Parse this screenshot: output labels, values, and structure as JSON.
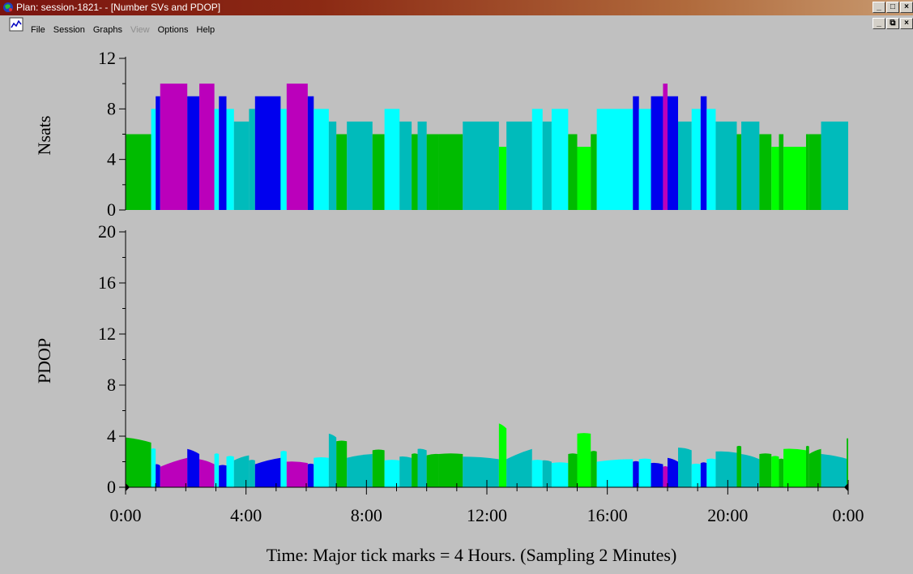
{
  "window": {
    "title": "Plan: session-1821- - [Number SVs and PDOP]",
    "app_icon": "globe-app-icon",
    "controls": [
      "_",
      "□",
      "×"
    ]
  },
  "mdi_controls": [
    "_",
    "⧉",
    "×"
  ],
  "menu": {
    "doc_icon": "chart-doc-icon",
    "items": [
      {
        "label": "File",
        "enabled": true
      },
      {
        "label": "Session",
        "enabled": true
      },
      {
        "label": "Graphs",
        "enabled": true
      },
      {
        "label": "View",
        "enabled": false
      },
      {
        "label": "Options",
        "enabled": true
      },
      {
        "label": "Help",
        "enabled": true
      }
    ]
  },
  "colors": {
    "green": "#00bb00",
    "magenta": "#bb00bb",
    "blue": "#0000ee",
    "cyan": "#00ffff",
    "teal": "#00bbbb",
    "lime": "#00ff00"
  },
  "chart_data": [
    {
      "type": "bar",
      "ylabel": "Nsats",
      "ylim": [
        0,
        12
      ],
      "yticks": [
        "0",
        "4",
        "8",
        "12"
      ],
      "xlim": [
        0,
        24
      ],
      "x_unit": "hours",
      "bars": [
        {
          "x0": 0.0,
          "x1": 0.85,
          "v": 6,
          "c": "green"
        },
        {
          "x0": 0.85,
          "x1": 1.0,
          "v": 8,
          "c": "cyan"
        },
        {
          "x0": 1.0,
          "x1": 1.15,
          "v": 9,
          "c": "blue"
        },
        {
          "x0": 1.15,
          "x1": 2.05,
          "v": 10,
          "c": "magenta"
        },
        {
          "x0": 2.05,
          "x1": 2.45,
          "v": 9,
          "c": "blue"
        },
        {
          "x0": 2.45,
          "x1": 2.95,
          "v": 10,
          "c": "magenta"
        },
        {
          "x0": 2.95,
          "x1": 3.1,
          "v": 8,
          "c": "cyan"
        },
        {
          "x0": 3.1,
          "x1": 3.35,
          "v": 9,
          "c": "blue"
        },
        {
          "x0": 3.35,
          "x1": 3.6,
          "v": 8,
          "c": "cyan"
        },
        {
          "x0": 3.6,
          "x1": 4.1,
          "v": 7,
          "c": "teal"
        },
        {
          "x0": 4.1,
          "x1": 4.3,
          "v": 8,
          "c": "teal"
        },
        {
          "x0": 4.3,
          "x1": 5.15,
          "v": 9,
          "c": "blue"
        },
        {
          "x0": 5.15,
          "x1": 5.35,
          "v": 8,
          "c": "cyan"
        },
        {
          "x0": 5.35,
          "x1": 6.05,
          "v": 10,
          "c": "magenta"
        },
        {
          "x0": 6.05,
          "x1": 6.25,
          "v": 9,
          "c": "blue"
        },
        {
          "x0": 6.25,
          "x1": 6.75,
          "v": 8,
          "c": "cyan"
        },
        {
          "x0": 6.75,
          "x1": 7.0,
          "v": 7,
          "c": "teal"
        },
        {
          "x0": 7.0,
          "x1": 7.35,
          "v": 6,
          "c": "green"
        },
        {
          "x0": 7.35,
          "x1": 8.2,
          "v": 7,
          "c": "teal"
        },
        {
          "x0": 8.2,
          "x1": 8.6,
          "v": 6,
          "c": "green"
        },
        {
          "x0": 8.6,
          "x1": 9.1,
          "v": 8,
          "c": "cyan"
        },
        {
          "x0": 9.1,
          "x1": 9.5,
          "v": 7,
          "c": "teal"
        },
        {
          "x0": 9.5,
          "x1": 9.7,
          "v": 6,
          "c": "green"
        },
        {
          "x0": 9.7,
          "x1": 10.0,
          "v": 7,
          "c": "teal"
        },
        {
          "x0": 10.0,
          "x1": 10.4,
          "v": 6,
          "c": "green"
        },
        {
          "x0": 10.4,
          "x1": 11.2,
          "v": 6,
          "c": "green"
        },
        {
          "x0": 11.2,
          "x1": 12.4,
          "v": 7,
          "c": "teal"
        },
        {
          "x0": 12.4,
          "x1": 12.65,
          "v": 5,
          "c": "lime"
        },
        {
          "x0": 12.65,
          "x1": 13.5,
          "v": 7,
          "c": "teal"
        },
        {
          "x0": 13.5,
          "x1": 13.85,
          "v": 8,
          "c": "cyan"
        },
        {
          "x0": 13.85,
          "x1": 14.15,
          "v": 7,
          "c": "teal"
        },
        {
          "x0": 14.15,
          "x1": 14.7,
          "v": 8,
          "c": "cyan"
        },
        {
          "x0": 14.7,
          "x1": 15.0,
          "v": 6,
          "c": "green"
        },
        {
          "x0": 15.0,
          "x1": 15.45,
          "v": 5,
          "c": "lime"
        },
        {
          "x0": 15.45,
          "x1": 15.65,
          "v": 6,
          "c": "green"
        },
        {
          "x0": 15.65,
          "x1": 16.85,
          "v": 8,
          "c": "cyan"
        },
        {
          "x0": 16.85,
          "x1": 17.05,
          "v": 9,
          "c": "blue"
        },
        {
          "x0": 17.05,
          "x1": 17.45,
          "v": 8,
          "c": "cyan"
        },
        {
          "x0": 17.45,
          "x1": 17.85,
          "v": 9,
          "c": "blue"
        },
        {
          "x0": 17.85,
          "x1": 18.0,
          "v": 10,
          "c": "magenta"
        },
        {
          "x0": 18.0,
          "x1": 18.35,
          "v": 9,
          "c": "blue"
        },
        {
          "x0": 18.35,
          "x1": 18.8,
          "v": 7,
          "c": "teal"
        },
        {
          "x0": 18.8,
          "x1": 19.1,
          "v": 8,
          "c": "cyan"
        },
        {
          "x0": 19.1,
          "x1": 19.3,
          "v": 9,
          "c": "blue"
        },
        {
          "x0": 19.3,
          "x1": 19.6,
          "v": 8,
          "c": "cyan"
        },
        {
          "x0": 19.6,
          "x1": 20.3,
          "v": 7,
          "c": "teal"
        },
        {
          "x0": 20.3,
          "x1": 20.45,
          "v": 6,
          "c": "green"
        },
        {
          "x0": 20.45,
          "x1": 21.05,
          "v": 7,
          "c": "teal"
        },
        {
          "x0": 21.05,
          "x1": 21.45,
          "v": 6,
          "c": "green"
        },
        {
          "x0": 21.45,
          "x1": 21.7,
          "v": 5,
          "c": "lime"
        },
        {
          "x0": 21.7,
          "x1": 21.85,
          "v": 6,
          "c": "green"
        },
        {
          "x0": 21.85,
          "x1": 22.6,
          "v": 5,
          "c": "lime"
        },
        {
          "x0": 22.6,
          "x1": 22.7,
          "v": 6,
          "c": "green"
        },
        {
          "x0": 22.7,
          "x1": 23.1,
          "v": 6,
          "c": "green"
        },
        {
          "x0": 23.1,
          "x1": 24.0,
          "v": 7,
          "c": "teal"
        }
      ]
    },
    {
      "type": "area",
      "ylabel": "PDOP",
      "ylim": [
        0,
        20
      ],
      "yticks": [
        "0",
        "4",
        "8",
        "12",
        "16",
        "20"
      ],
      "xlim": [
        0,
        24
      ],
      "x_unit": "hours",
      "xticks": [
        "0:00",
        "4:00",
        "8:00",
        "12:00",
        "16:00",
        "20:00",
        "0:00"
      ],
      "xlabel": "Time: Major tick marks = 4 Hours. (Sampling 2 Minutes)",
      "segments": [
        {
          "x0": 0.0,
          "x1": 0.85,
          "y0": 3.9,
          "y1": 3.5,
          "c": "green"
        },
        {
          "x0": 0.85,
          "x1": 1.0,
          "y0": 3.0,
          "y1": 3.0,
          "c": "cyan"
        },
        {
          "x0": 1.0,
          "x1": 1.15,
          "y0": 1.8,
          "y1": 1.7,
          "c": "blue"
        },
        {
          "x0": 1.15,
          "x1": 2.05,
          "y0": 1.6,
          "y1": 2.3,
          "c": "magenta"
        },
        {
          "x0": 2.05,
          "x1": 2.45,
          "y0": 3.0,
          "y1": 2.6,
          "c": "blue"
        },
        {
          "x0": 2.45,
          "x1": 2.95,
          "y0": 2.2,
          "y1": 1.8,
          "c": "magenta"
        },
        {
          "x0": 2.95,
          "x1": 3.1,
          "y0": 2.6,
          "y1": 2.6,
          "c": "cyan"
        },
        {
          "x0": 3.1,
          "x1": 3.35,
          "y0": 1.7,
          "y1": 1.7,
          "c": "blue"
        },
        {
          "x0": 3.35,
          "x1": 3.6,
          "y0": 2.4,
          "y1": 2.4,
          "c": "cyan"
        },
        {
          "x0": 3.6,
          "x1": 4.1,
          "y0": 2.1,
          "y1": 2.5,
          "c": "teal"
        },
        {
          "x0": 4.1,
          "x1": 4.3,
          "y0": 2.1,
          "y1": 2.1,
          "c": "teal"
        },
        {
          "x0": 4.3,
          "x1": 5.15,
          "y0": 1.8,
          "y1": 2.3,
          "c": "blue"
        },
        {
          "x0": 5.15,
          "x1": 5.35,
          "y0": 2.8,
          "y1": 2.8,
          "c": "cyan"
        },
        {
          "x0": 5.35,
          "x1": 6.05,
          "y0": 2.0,
          "y1": 1.9,
          "c": "magenta"
        },
        {
          "x0": 6.05,
          "x1": 6.25,
          "y0": 1.8,
          "y1": 1.8,
          "c": "blue"
        },
        {
          "x0": 6.25,
          "x1": 6.75,
          "y0": 2.3,
          "y1": 2.3,
          "c": "cyan"
        },
        {
          "x0": 6.75,
          "x1": 7.0,
          "y0": 4.2,
          "y1": 3.9,
          "c": "teal"
        },
        {
          "x0": 7.0,
          "x1": 7.35,
          "y0": 3.6,
          "y1": 3.6,
          "c": "green"
        },
        {
          "x0": 7.35,
          "x1": 8.2,
          "y0": 2.3,
          "y1": 2.6,
          "c": "teal"
        },
        {
          "x0": 8.2,
          "x1": 8.6,
          "y0": 2.9,
          "y1": 2.9,
          "c": "green"
        },
        {
          "x0": 8.6,
          "x1": 9.1,
          "y0": 2.1,
          "y1": 2.1,
          "c": "cyan"
        },
        {
          "x0": 9.1,
          "x1": 9.5,
          "y0": 2.4,
          "y1": 2.3,
          "c": "teal"
        },
        {
          "x0": 9.5,
          "x1": 9.7,
          "y0": 2.6,
          "y1": 2.6,
          "c": "green"
        },
        {
          "x0": 9.7,
          "x1": 10.0,
          "y0": 3.0,
          "y1": 2.9,
          "c": "teal"
        },
        {
          "x0": 10.0,
          "x1": 10.4,
          "y0": 2.5,
          "y1": 2.6,
          "c": "green"
        },
        {
          "x0": 10.4,
          "x1": 11.2,
          "y0": 2.6,
          "y1": 2.6,
          "c": "green"
        },
        {
          "x0": 11.2,
          "x1": 12.4,
          "y0": 2.4,
          "y1": 2.2,
          "c": "teal"
        },
        {
          "x0": 12.4,
          "x1": 12.65,
          "y0": 5.0,
          "y1": 4.6,
          "c": "lime"
        },
        {
          "x0": 12.65,
          "x1": 13.5,
          "y0": 2.2,
          "y1": 3.0,
          "c": "teal"
        },
        {
          "x0": 13.5,
          "x1": 13.85,
          "y0": 2.1,
          "y1": 2.1,
          "c": "cyan"
        },
        {
          "x0": 13.85,
          "x1": 14.15,
          "y0": 2.1,
          "y1": 2.0,
          "c": "teal"
        },
        {
          "x0": 14.15,
          "x1": 14.7,
          "y0": 1.9,
          "y1": 1.9,
          "c": "cyan"
        },
        {
          "x0": 14.7,
          "x1": 15.0,
          "y0": 2.6,
          "y1": 2.6,
          "c": "green"
        },
        {
          "x0": 15.0,
          "x1": 15.45,
          "y0": 4.2,
          "y1": 4.2,
          "c": "lime"
        },
        {
          "x0": 15.45,
          "x1": 15.65,
          "y0": 2.8,
          "y1": 2.8,
          "c": "green"
        },
        {
          "x0": 15.65,
          "x1": 16.85,
          "y0": 2.0,
          "y1": 2.2,
          "c": "cyan"
        },
        {
          "x0": 16.85,
          "x1": 17.05,
          "y0": 2.0,
          "y1": 2.0,
          "c": "blue"
        },
        {
          "x0": 17.05,
          "x1": 17.45,
          "y0": 2.2,
          "y1": 2.2,
          "c": "cyan"
        },
        {
          "x0": 17.45,
          "x1": 17.85,
          "y0": 1.9,
          "y1": 1.8,
          "c": "blue"
        },
        {
          "x0": 17.85,
          "x1": 18.0,
          "y0": 1.6,
          "y1": 1.6,
          "c": "magenta"
        },
        {
          "x0": 18.0,
          "x1": 18.35,
          "y0": 2.3,
          "y1": 2.0,
          "c": "blue"
        },
        {
          "x0": 18.35,
          "x1": 18.8,
          "y0": 3.1,
          "y1": 2.9,
          "c": "teal"
        },
        {
          "x0": 18.8,
          "x1": 19.1,
          "y0": 1.8,
          "y1": 1.8,
          "c": "cyan"
        },
        {
          "x0": 19.1,
          "x1": 19.3,
          "y0": 1.9,
          "y1": 1.9,
          "c": "blue"
        },
        {
          "x0": 19.3,
          "x1": 19.6,
          "y0": 2.2,
          "y1": 2.2,
          "c": "cyan"
        },
        {
          "x0": 19.6,
          "x1": 20.3,
          "y0": 2.8,
          "y1": 2.7,
          "c": "teal"
        },
        {
          "x0": 20.3,
          "x1": 20.45,
          "y0": 3.2,
          "y1": 3.2,
          "c": "green"
        },
        {
          "x0": 20.45,
          "x1": 21.05,
          "y0": 2.6,
          "y1": 2.2,
          "c": "teal"
        },
        {
          "x0": 21.05,
          "x1": 21.45,
          "y0": 2.6,
          "y1": 2.6,
          "c": "green"
        },
        {
          "x0": 21.45,
          "x1": 21.7,
          "y0": 2.4,
          "y1": 2.4,
          "c": "lime"
        },
        {
          "x0": 21.7,
          "x1": 21.85,
          "y0": 2.2,
          "y1": 2.2,
          "c": "green"
        },
        {
          "x0": 21.85,
          "x1": 22.6,
          "y0": 3.0,
          "y1": 2.9,
          "c": "lime"
        },
        {
          "x0": 22.6,
          "x1": 22.7,
          "y0": 3.2,
          "y1": 3.2,
          "c": "green"
        },
        {
          "x0": 22.7,
          "x1": 23.1,
          "y0": 2.6,
          "y1": 3.0,
          "c": "green"
        },
        {
          "x0": 23.1,
          "x1": 24.0,
          "y0": 2.6,
          "y1": 2.2,
          "c": "teal"
        },
        {
          "x0": 23.95,
          "x1": 24.0,
          "y0": 3.8,
          "y1": 3.8,
          "c": "green"
        }
      ]
    }
  ]
}
